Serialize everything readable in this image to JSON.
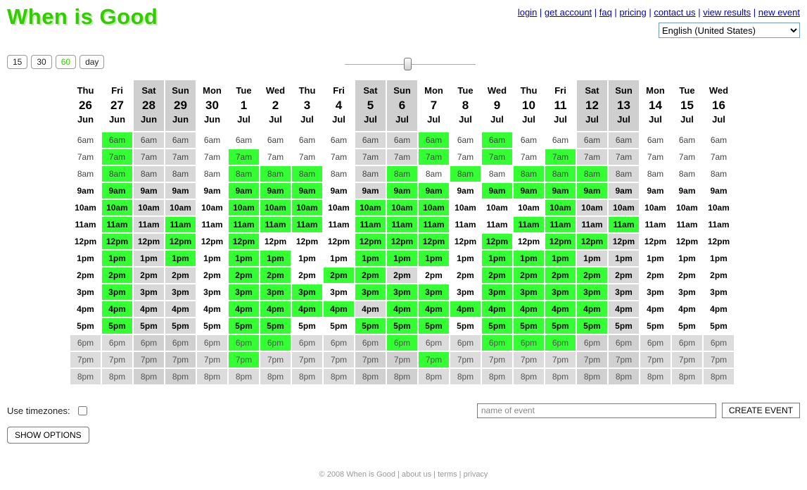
{
  "logo": "When is Good",
  "nav": {
    "separator": "|",
    "links": [
      {
        "id": "login",
        "label": "login"
      },
      {
        "id": "get-account",
        "label": "get account"
      },
      {
        "id": "faq",
        "label": "faq"
      },
      {
        "id": "pricing",
        "label": "pricing"
      },
      {
        "id": "contact-us",
        "label": "contact us"
      },
      {
        "id": "view-results",
        "label": "view results"
      },
      {
        "id": "new-event",
        "label": "new event"
      }
    ]
  },
  "language": {
    "selected": "English (United States)"
  },
  "toolbar": {
    "intervals": [
      {
        "id": "15",
        "label": "15",
        "active": false
      },
      {
        "id": "30",
        "label": "30",
        "active": false
      },
      {
        "id": "60",
        "label": "60",
        "active": true
      },
      {
        "id": "day",
        "label": "day",
        "active": false
      }
    ],
    "slider_position_pct": 45
  },
  "grid": {
    "days": [
      {
        "dow": "Thu",
        "date": "26",
        "month": "Jun"
      },
      {
        "dow": "Fri",
        "date": "27",
        "month": "Jun"
      },
      {
        "dow": "Sat",
        "date": "28",
        "month": "Jun"
      },
      {
        "dow": "Sun",
        "date": "29",
        "month": "Jun"
      },
      {
        "dow": "Mon",
        "date": "30",
        "month": "Jun"
      },
      {
        "dow": "Tue",
        "date": "1",
        "month": "Jul"
      },
      {
        "dow": "Wed",
        "date": "2",
        "month": "Jul"
      },
      {
        "dow": "Thu",
        "date": "3",
        "month": "Jul"
      },
      {
        "dow": "Fri",
        "date": "4",
        "month": "Jul"
      },
      {
        "dow": "Sat",
        "date": "5",
        "month": "Jul"
      },
      {
        "dow": "Sun",
        "date": "6",
        "month": "Jul"
      },
      {
        "dow": "Mon",
        "date": "7",
        "month": "Jul"
      },
      {
        "dow": "Tue",
        "date": "8",
        "month": "Jul"
      },
      {
        "dow": "Wed",
        "date": "9",
        "month": "Jul"
      },
      {
        "dow": "Thu",
        "date": "10",
        "month": "Jul"
      },
      {
        "dow": "Fri",
        "date": "11",
        "month": "Jul"
      },
      {
        "dow": "Sat",
        "date": "12",
        "month": "Jul"
      },
      {
        "dow": "Sun",
        "date": "13",
        "month": "Jul"
      },
      {
        "dow": "Mon",
        "date": "14",
        "month": "Jul"
      },
      {
        "dow": "Tue",
        "date": "15",
        "month": "Jul"
      },
      {
        "dow": "Wed",
        "date": "16",
        "month": "Jul"
      }
    ],
    "times": [
      {
        "label": "6am",
        "band": "early"
      },
      {
        "label": "7am",
        "band": "early"
      },
      {
        "label": "8am",
        "band": "early"
      },
      {
        "label": "9am",
        "band": "core"
      },
      {
        "label": "10am",
        "band": "core"
      },
      {
        "label": "11am",
        "band": "core"
      },
      {
        "label": "12pm",
        "band": "core"
      },
      {
        "label": "1pm",
        "band": "core"
      },
      {
        "label": "2pm",
        "band": "core"
      },
      {
        "label": "3pm",
        "band": "core"
      },
      {
        "label": "4pm",
        "band": "core"
      },
      {
        "label": "5pm",
        "band": "core"
      },
      {
        "label": "6pm",
        "band": "late"
      },
      {
        "label": "7pm",
        "band": "late"
      },
      {
        "label": "8pm",
        "band": "late"
      }
    ],
    "selected_by_row": [
      [
        1,
        11,
        13
      ],
      [
        1,
        5,
        11,
        13,
        15
      ],
      [
        1,
        5,
        6,
        7,
        10,
        12,
        14,
        15,
        16
      ],
      [
        1,
        5,
        6,
        7,
        10,
        11,
        13,
        14,
        15,
        16
      ],
      [
        1,
        5,
        6,
        7,
        9,
        10,
        11,
        15
      ],
      [
        1,
        3,
        5,
        6,
        7,
        9,
        10,
        11,
        14,
        15,
        17
      ],
      [
        1,
        3,
        5,
        9,
        10,
        11,
        13,
        15,
        16
      ],
      [
        1,
        3,
        5,
        6,
        9,
        10,
        11,
        13,
        14,
        15
      ],
      [
        1,
        5,
        6,
        8,
        9,
        13,
        14,
        15,
        16
      ],
      [
        1,
        5,
        6,
        7,
        9,
        10,
        11,
        13,
        14,
        15,
        16
      ],
      [
        1,
        5,
        6,
        7,
        8,
        10,
        11,
        12,
        13,
        14,
        15,
        16
      ],
      [
        1,
        5,
        6,
        9,
        10,
        11,
        13,
        14,
        15,
        16
      ],
      [
        5,
        6,
        10,
        13,
        14,
        15
      ],
      [
        5,
        11
      ],
      []
    ]
  },
  "controls": {
    "use_timezones_label": "Use timezones:",
    "use_timezones_checked": false,
    "event_name_placeholder": "name of event",
    "create_event_label": "CREATE EVENT",
    "show_options_label": "SHOW OPTIONS"
  },
  "footer": {
    "copyright": "© 2008 When is Good",
    "separator": "|",
    "links": [
      {
        "id": "about-us",
        "label": "about us"
      },
      {
        "id": "terms",
        "label": "terms"
      },
      {
        "id": "privacy",
        "label": "privacy"
      }
    ]
  },
  "colors": {
    "selected_green": "#33ff33",
    "logo_green": "#33cc00",
    "link_blue": "#0000cc",
    "weekend_grey": "#d8d8d8",
    "offhours_grey": "#dcdcdc"
  }
}
